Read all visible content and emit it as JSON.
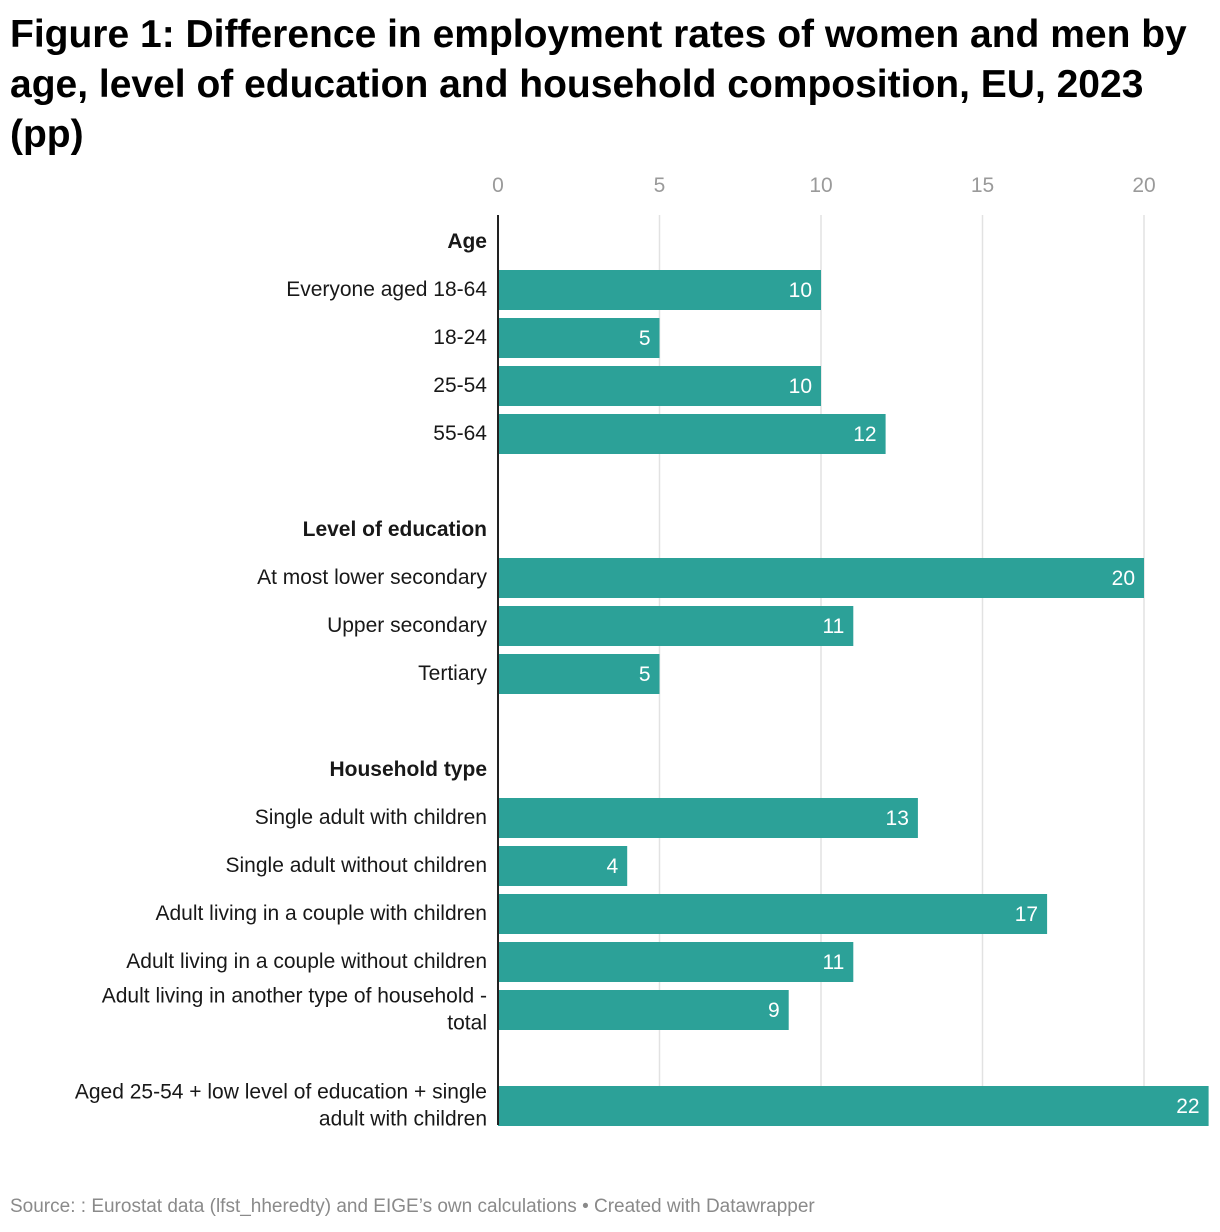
{
  "title": "Figure 1: Difference in employment rates of women and men by age, level of education and household composition, EU, 2023 (pp)",
  "footer": {
    "source": "Source: : Eurostat data (lfst_hheredty) and EIGE’s own calculations",
    "separator": "•",
    "credit": "Created with Datawrapper"
  },
  "colors": {
    "bar": "#2ca198",
    "gridline": "#e2e2e2",
    "axis_line": "#222222",
    "tick_text": "#9a9a9a",
    "label_text": "#181818",
    "value_text": "#ffffff"
  },
  "chart_data": {
    "type": "bar",
    "orientation": "horizontal",
    "xlim": [
      0,
      22
    ],
    "xticks": [
      0,
      5,
      10,
      15,
      20
    ],
    "grid": true,
    "rows": [
      {
        "kind": "header",
        "lines": [
          "Age"
        ]
      },
      {
        "kind": "bar",
        "lines": [
          "Everyone aged 18-64"
        ],
        "value": 10
      },
      {
        "kind": "bar",
        "lines": [
          "18-24"
        ],
        "value": 5
      },
      {
        "kind": "bar",
        "lines": [
          "25-54"
        ],
        "value": 10
      },
      {
        "kind": "bar",
        "lines": [
          "55-64"
        ],
        "value": 12
      },
      {
        "kind": "spacer"
      },
      {
        "kind": "header",
        "lines": [
          "Level of education"
        ]
      },
      {
        "kind": "bar",
        "lines": [
          "At most lower secondary"
        ],
        "value": 20
      },
      {
        "kind": "bar",
        "lines": [
          "Upper secondary"
        ],
        "value": 11
      },
      {
        "kind": "bar",
        "lines": [
          "Tertiary"
        ],
        "value": 5
      },
      {
        "kind": "spacer"
      },
      {
        "kind": "header",
        "lines": [
          "Household type"
        ]
      },
      {
        "kind": "bar",
        "lines": [
          "Single adult with children"
        ],
        "value": 13
      },
      {
        "kind": "bar",
        "lines": [
          "Single adult without children"
        ],
        "value": 4
      },
      {
        "kind": "bar",
        "lines": [
          "Adult living in a couple with children"
        ],
        "value": 17
      },
      {
        "kind": "bar",
        "lines": [
          "Adult living in a couple without children"
        ],
        "value": 11
      },
      {
        "kind": "bar",
        "lines": [
          "Adult living in another type of household -",
          "total"
        ],
        "value": 9
      },
      {
        "kind": "spacer"
      },
      {
        "kind": "bar",
        "lines": [
          "Aged 25-54 + low level of education + single",
          "adult with children"
        ],
        "value": 22
      }
    ]
  }
}
